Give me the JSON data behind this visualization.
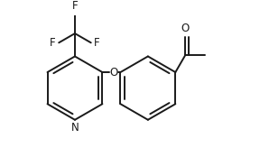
{
  "bg_color": "#ffffff",
  "line_color": "#1a1a1a",
  "line_width": 1.4,
  "font_size": 8.5,
  "fig_width": 2.88,
  "fig_height": 1.74,
  "dpi": 100,
  "xlim": [
    0.0,
    5.2
  ],
  "ylim": [
    0.0,
    3.2
  ]
}
